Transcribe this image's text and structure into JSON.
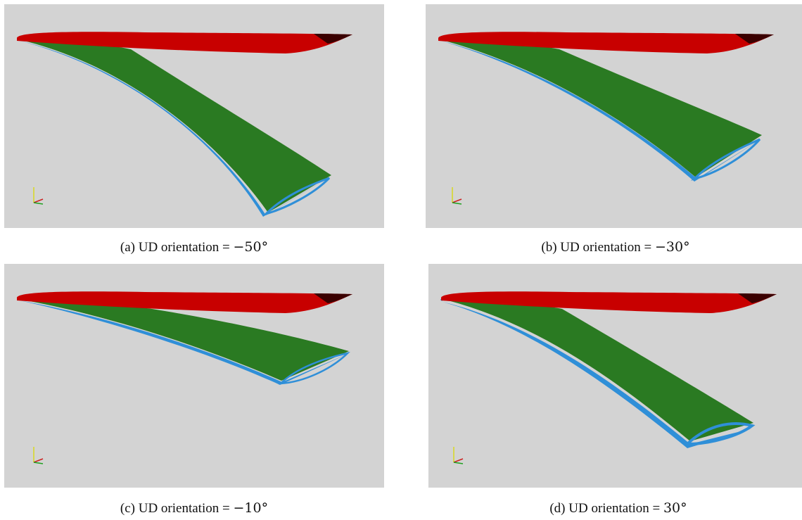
{
  "figures": [
    {
      "id": "a",
      "caption_prefix": "(a) UD orientation =",
      "angle": "−50°"
    },
    {
      "id": "b",
      "caption_prefix": "(b) UD orientation =",
      "angle": "−30°"
    },
    {
      "id": "c",
      "caption_prefix": "(c) UD orientation =",
      "angle": "−10°"
    },
    {
      "id": "d",
      "caption_prefix": "(d) UD orientation =",
      "angle": "30°"
    }
  ],
  "colors": {
    "background": "#d3d3d3",
    "undeformed_wing": "#c80000",
    "deformed_wing": "#2a7a22",
    "wing_underside": "#2f8fd8",
    "axis_y": "#d8d820",
    "axis_x": "#cc2020",
    "axis_z": "#20a020"
  }
}
